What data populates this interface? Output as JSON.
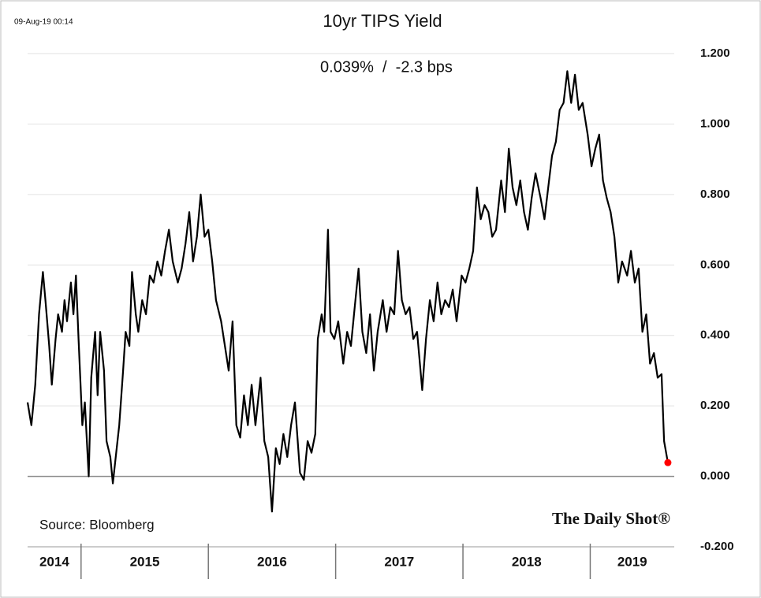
{
  "chart_data": {
    "type": "line",
    "timestamp": "09-Aug-19 00:14",
    "title": "10yr TIPS Yield",
    "subtitle": "0.039%  /  -2.3 bps",
    "source": "Source: Bloomberg",
    "logo": "The Daily Shot®",
    "x_labels": [
      "2014",
      "2015",
      "2016",
      "2017",
      "2018",
      "2019"
    ],
    "xticks": [
      2015,
      2016,
      2017,
      2018,
      2019
    ],
    "xlim": [
      2014.58,
      2019.66
    ],
    "ylim": [
      -0.2,
      1.2
    ],
    "yticks": [
      {
        "value": 1.2,
        "label": "1.200"
      },
      {
        "value": 1.0,
        "label": "1.000"
      },
      {
        "value": 0.8,
        "label": "0.800"
      },
      {
        "value": 0.6,
        "label": "0.600"
      },
      {
        "value": 0.4,
        "label": "0.400"
      },
      {
        "value": 0.2,
        "label": "0.200"
      },
      {
        "value": 0,
        "label": "0.000"
      },
      {
        "value": -0.2,
        "label": "-0.200"
      }
    ],
    "grid": true,
    "last_point_color": "#ff0000",
    "series": [
      {
        "color": "#000000",
        "x": [
          2014.58,
          2014.61,
          2014.64,
          2014.67,
          2014.7,
          2014.72,
          2014.75,
          2014.77,
          2014.8,
          2014.82,
          2014.85,
          2014.87,
          2014.89,
          2014.92,
          2014.94,
          2014.96,
          2014.98,
          2015.01,
          2015.03,
          2015.06,
          2015.08,
          2015.11,
          2015.13,
          2015.15,
          2015.18,
          2015.2,
          2015.23,
          2015.25,
          2015.28,
          2015.3,
          2015.33,
          2015.35,
          2015.38,
          2015.4,
          2015.43,
          2015.45,
          2015.48,
          2015.51,
          2015.54,
          2015.57,
          2015.6,
          2015.63,
          2015.66,
          2015.69,
          2015.72,
          2015.76,
          2015.79,
          2015.82,
          2015.85,
          2015.88,
          2015.91,
          2015.94,
          2015.97,
          2016.0,
          2016.03,
          2016.06,
          2016.1,
          2016.13,
          2016.16,
          2016.19,
          2016.22,
          2016.25,
          2016.28,
          2016.31,
          2016.34,
          2016.37,
          2016.41,
          2016.44,
          2016.47,
          2016.5,
          2016.53,
          2016.56,
          2016.59,
          2016.62,
          2016.65,
          2016.68,
          2016.72,
          2016.75,
          2016.78,
          2016.81,
          2016.84,
          2016.86,
          2016.89,
          2016.91,
          2016.94,
          2016.96,
          2016.99,
          2017.02,
          2017.06,
          2017.09,
          2017.12,
          2017.15,
          2017.18,
          2017.21,
          2017.24,
          2017.27,
          2017.3,
          2017.33,
          2017.37,
          2017.4,
          2017.43,
          2017.46,
          2017.49,
          2017.52,
          2017.55,
          2017.58,
          2017.61,
          2017.64,
          2017.68,
          2017.71,
          2017.74,
          2017.77,
          2017.8,
          2017.83,
          2017.86,
          2017.89,
          2017.92,
          2017.95,
          2017.99,
          2018.02,
          2018.05,
          2018.08,
          2018.11,
          2018.14,
          2018.17,
          2018.2,
          2018.23,
          2018.26,
          2018.3,
          2018.33,
          2018.36,
          2018.39,
          2018.42,
          2018.45,
          2018.48,
          2018.51,
          2018.54,
          2018.57,
          2018.61,
          2018.64,
          2018.67,
          2018.7,
          2018.73,
          2018.76,
          2018.79,
          2018.82,
          2018.85,
          2018.88,
          2018.91,
          2018.94,
          2018.98,
          2019.01,
          2019.04,
          2019.07,
          2019.1,
          2019.13,
          2019.16,
          2019.19,
          2019.22,
          2019.25,
          2019.29,
          2019.32,
          2019.35,
          2019.38,
          2019.41,
          2019.44,
          2019.47,
          2019.5,
          2019.53,
          2019.56,
          2019.58,
          2019.61
        ],
        "values": [
          0.21,
          0.145,
          0.26,
          0.46,
          0.58,
          0.5,
          0.37,
          0.26,
          0.39,
          0.46,
          0.41,
          0.5,
          0.44,
          0.55,
          0.46,
          0.57,
          0.39,
          0.145,
          0.21,
          0.0,
          0.28,
          0.41,
          0.23,
          0.41,
          0.3,
          0.1,
          0.055,
          -0.02,
          0.08,
          0.145,
          0.3,
          0.41,
          0.37,
          0.58,
          0.46,
          0.41,
          0.5,
          0.46,
          0.57,
          0.55,
          0.61,
          0.57,
          0.64,
          0.7,
          0.61,
          0.55,
          0.59,
          0.66,
          0.75,
          0.61,
          0.68,
          0.8,
          0.68,
          0.7,
          0.61,
          0.5,
          0.44,
          0.37,
          0.3,
          0.44,
          0.145,
          0.11,
          0.23,
          0.145,
          0.26,
          0.145,
          0.28,
          0.1,
          0.055,
          -0.1,
          0.08,
          0.035,
          0.12,
          0.055,
          0.145,
          0.21,
          0.01,
          -0.01,
          0.1,
          0.067,
          0.12,
          0.39,
          0.46,
          0.41,
          0.7,
          0.41,
          0.39,
          0.44,
          0.32,
          0.41,
          0.37,
          0.48,
          0.59,
          0.41,
          0.35,
          0.46,
          0.3,
          0.41,
          0.5,
          0.41,
          0.48,
          0.46,
          0.64,
          0.5,
          0.46,
          0.48,
          0.39,
          0.41,
          0.245,
          0.39,
          0.5,
          0.44,
          0.55,
          0.46,
          0.5,
          0.48,
          0.53,
          0.44,
          0.57,
          0.55,
          0.59,
          0.64,
          0.82,
          0.73,
          0.77,
          0.75,
          0.68,
          0.7,
          0.84,
          0.75,
          0.93,
          0.82,
          0.77,
          0.84,
          0.75,
          0.7,
          0.79,
          0.86,
          0.79,
          0.73,
          0.82,
          0.91,
          0.95,
          1.04,
          1.06,
          1.15,
          1.06,
          1.14,
          1.04,
          1.06,
          0.97,
          0.88,
          0.93,
          0.97,
          0.84,
          0.79,
          0.75,
          0.68,
          0.55,
          0.61,
          0.57,
          0.64,
          0.55,
          0.59,
          0.41,
          0.46,
          0.32,
          0.35,
          0.28,
          0.29,
          0.1,
          0.039
        ]
      }
    ]
  }
}
